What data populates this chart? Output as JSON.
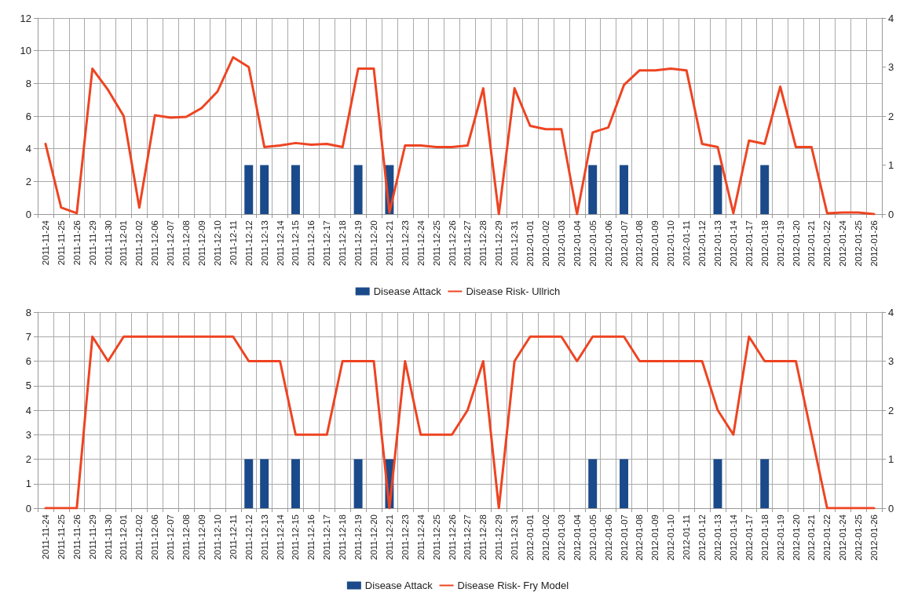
{
  "chart_data": [
    {
      "type": "bar",
      "categories": [
        "2011-11-24",
        "2011-11-25",
        "2011-11-26",
        "2011-11-29",
        "2011-11-30",
        "2011-12-01",
        "2011-12-02",
        "2011-12-06",
        "2011-12-07",
        "2011-12-08",
        "2011-12-09",
        "2011-12-10",
        "2011-12-11",
        "2011-12-12",
        "2011-12-13",
        "2011-12-14",
        "2011-12-15",
        "2011-12-16",
        "2011-12-17",
        "2011-12-18",
        "2011-12-19",
        "2011-12-20",
        "2011-12-21",
        "2011-12-23",
        "2011-12-24",
        "2011-12-25",
        "2011-12-26",
        "2011-12-27",
        "2011-12-28",
        "2011-12-29",
        "2011-12-31",
        "2012-01-01",
        "2012-01-02",
        "2012-01-03",
        "2012-01-04",
        "2012-01-05",
        "2012-01-06",
        "2012-01-07",
        "2012-01-08",
        "2012-01-09",
        "2012-01-10",
        "2012-01-11",
        "2012-01-12",
        "2012-01-13",
        "2012-01-14",
        "2012-01-17",
        "2012-01-18",
        "2012-01-19",
        "2012-01-20",
        "2012-01-21",
        "2012-01-22",
        "2012-01-24",
        "2012-01-25",
        "2012-01-26"
      ],
      "series": [
        {
          "name": "Disease Attack",
          "axis": "y2",
          "color": "#1a4a8a",
          "values": [
            null,
            null,
            null,
            null,
            null,
            null,
            null,
            null,
            null,
            null,
            null,
            null,
            null,
            1,
            1,
            null,
            1,
            null,
            null,
            null,
            1,
            null,
            1,
            null,
            null,
            null,
            null,
            null,
            null,
            null,
            null,
            null,
            null,
            null,
            null,
            1,
            null,
            1,
            null,
            null,
            null,
            null,
            null,
            1,
            null,
            null,
            1,
            null,
            null,
            null,
            null,
            null,
            null,
            null
          ]
        },
        {
          "name": "Disease Risk- Ullrich",
          "type": "line",
          "color": "#ee4422",
          "values": [
            4.3,
            0.4,
            0.05,
            8.9,
            7.6,
            6.0,
            0.4,
            6.05,
            5.9,
            5.95,
            6.5,
            7.5,
            9.6,
            9.0,
            4.1,
            4.2,
            4.35,
            4.25,
            4.3,
            4.1,
            8.9,
            8.9,
            0.1,
            4.2,
            4.2,
            4.1,
            4.1,
            4.2,
            7.7,
            0.0,
            7.7,
            5.4,
            5.2,
            5.2,
            0.0,
            5.0,
            5.3,
            7.9,
            8.8,
            8.8,
            8.9,
            8.8,
            4.3,
            4.1,
            0.05,
            4.5,
            4.3,
            7.8,
            4.1,
            4.1,
            0.05,
            0.1,
            0.1,
            0.0
          ]
        }
      ],
      "ylim": [
        0,
        12
      ],
      "yticks": [
        0,
        2,
        4,
        6,
        8,
        10,
        12
      ],
      "y2lim": [
        0,
        4
      ],
      "y2ticks": [
        0,
        1,
        2,
        3,
        4
      ],
      "grid": true,
      "legend": "bottom",
      "marker": "none"
    },
    {
      "type": "bar",
      "categories": [
        "2011-11-24",
        "2011-11-25",
        "2011-11-26",
        "2011-11-29",
        "2011-11-30",
        "2011-12-01",
        "2011-12-02",
        "2011-12-06",
        "2011-12-07",
        "2011-12-08",
        "2011-12-09",
        "2011-12-10",
        "2011-12-11",
        "2011-12-12",
        "2011-12-13",
        "2011-12-14",
        "2011-12-15",
        "2011-12-16",
        "2011-12-17",
        "2011-12-18",
        "2011-12-19",
        "2011-12-20",
        "2011-12-21",
        "2011-12-23",
        "2011-12-24",
        "2011-12-25",
        "2011-12-26",
        "2011-12-27",
        "2011-12-28",
        "2011-12-29",
        "2011-12-31",
        "2012-01-01",
        "2012-01-02",
        "2012-01-03",
        "2012-01-04",
        "2012-01-05",
        "2012-01-06",
        "2012-01-07",
        "2012-01-08",
        "2012-01-09",
        "2012-01-10",
        "2012-01-11",
        "2012-01-12",
        "2012-01-13",
        "2012-01-14",
        "2012-01-17",
        "2012-01-18",
        "2012-01-19",
        "2012-01-20",
        "2012-01-21",
        "2012-01-22",
        "2012-01-24",
        "2012-01-25",
        "2012-01-26"
      ],
      "series": [
        {
          "name": "Disease Attack",
          "axis": "y2",
          "color": "#1a4a8a",
          "values": [
            null,
            null,
            null,
            null,
            null,
            null,
            null,
            null,
            null,
            null,
            null,
            null,
            null,
            1,
            1,
            null,
            1,
            null,
            null,
            null,
            1,
            null,
            1,
            null,
            null,
            null,
            null,
            null,
            null,
            null,
            null,
            null,
            null,
            null,
            null,
            1,
            null,
            1,
            null,
            null,
            null,
            null,
            null,
            1,
            null,
            null,
            1,
            null,
            null,
            null,
            null,
            null,
            null,
            null
          ]
        },
        {
          "name": "Disease Risk- Fry Model",
          "type": "line",
          "color": "#ee4422",
          "values": [
            0,
            0,
            0,
            7,
            6,
            7,
            7,
            7,
            7,
            7,
            7,
            7,
            7,
            6,
            6,
            6,
            3,
            3,
            3,
            6,
            6,
            6,
            0,
            6,
            3,
            3,
            3,
            4,
            6,
            0,
            6,
            7,
            7,
            7,
            6,
            7,
            7,
            7,
            6,
            6,
            6,
            6,
            6,
            4,
            3,
            7,
            6,
            6,
            6,
            3,
            0,
            0,
            0,
            0
          ]
        }
      ],
      "ylim": [
        0,
        8
      ],
      "yticks": [
        0,
        1,
        2,
        3,
        4,
        5,
        6,
        7,
        8
      ],
      "y2lim": [
        0,
        4
      ],
      "y2ticks": [
        0,
        1,
        2,
        3,
        4
      ],
      "grid": true,
      "legend": "bottom",
      "marker": "none"
    }
  ]
}
